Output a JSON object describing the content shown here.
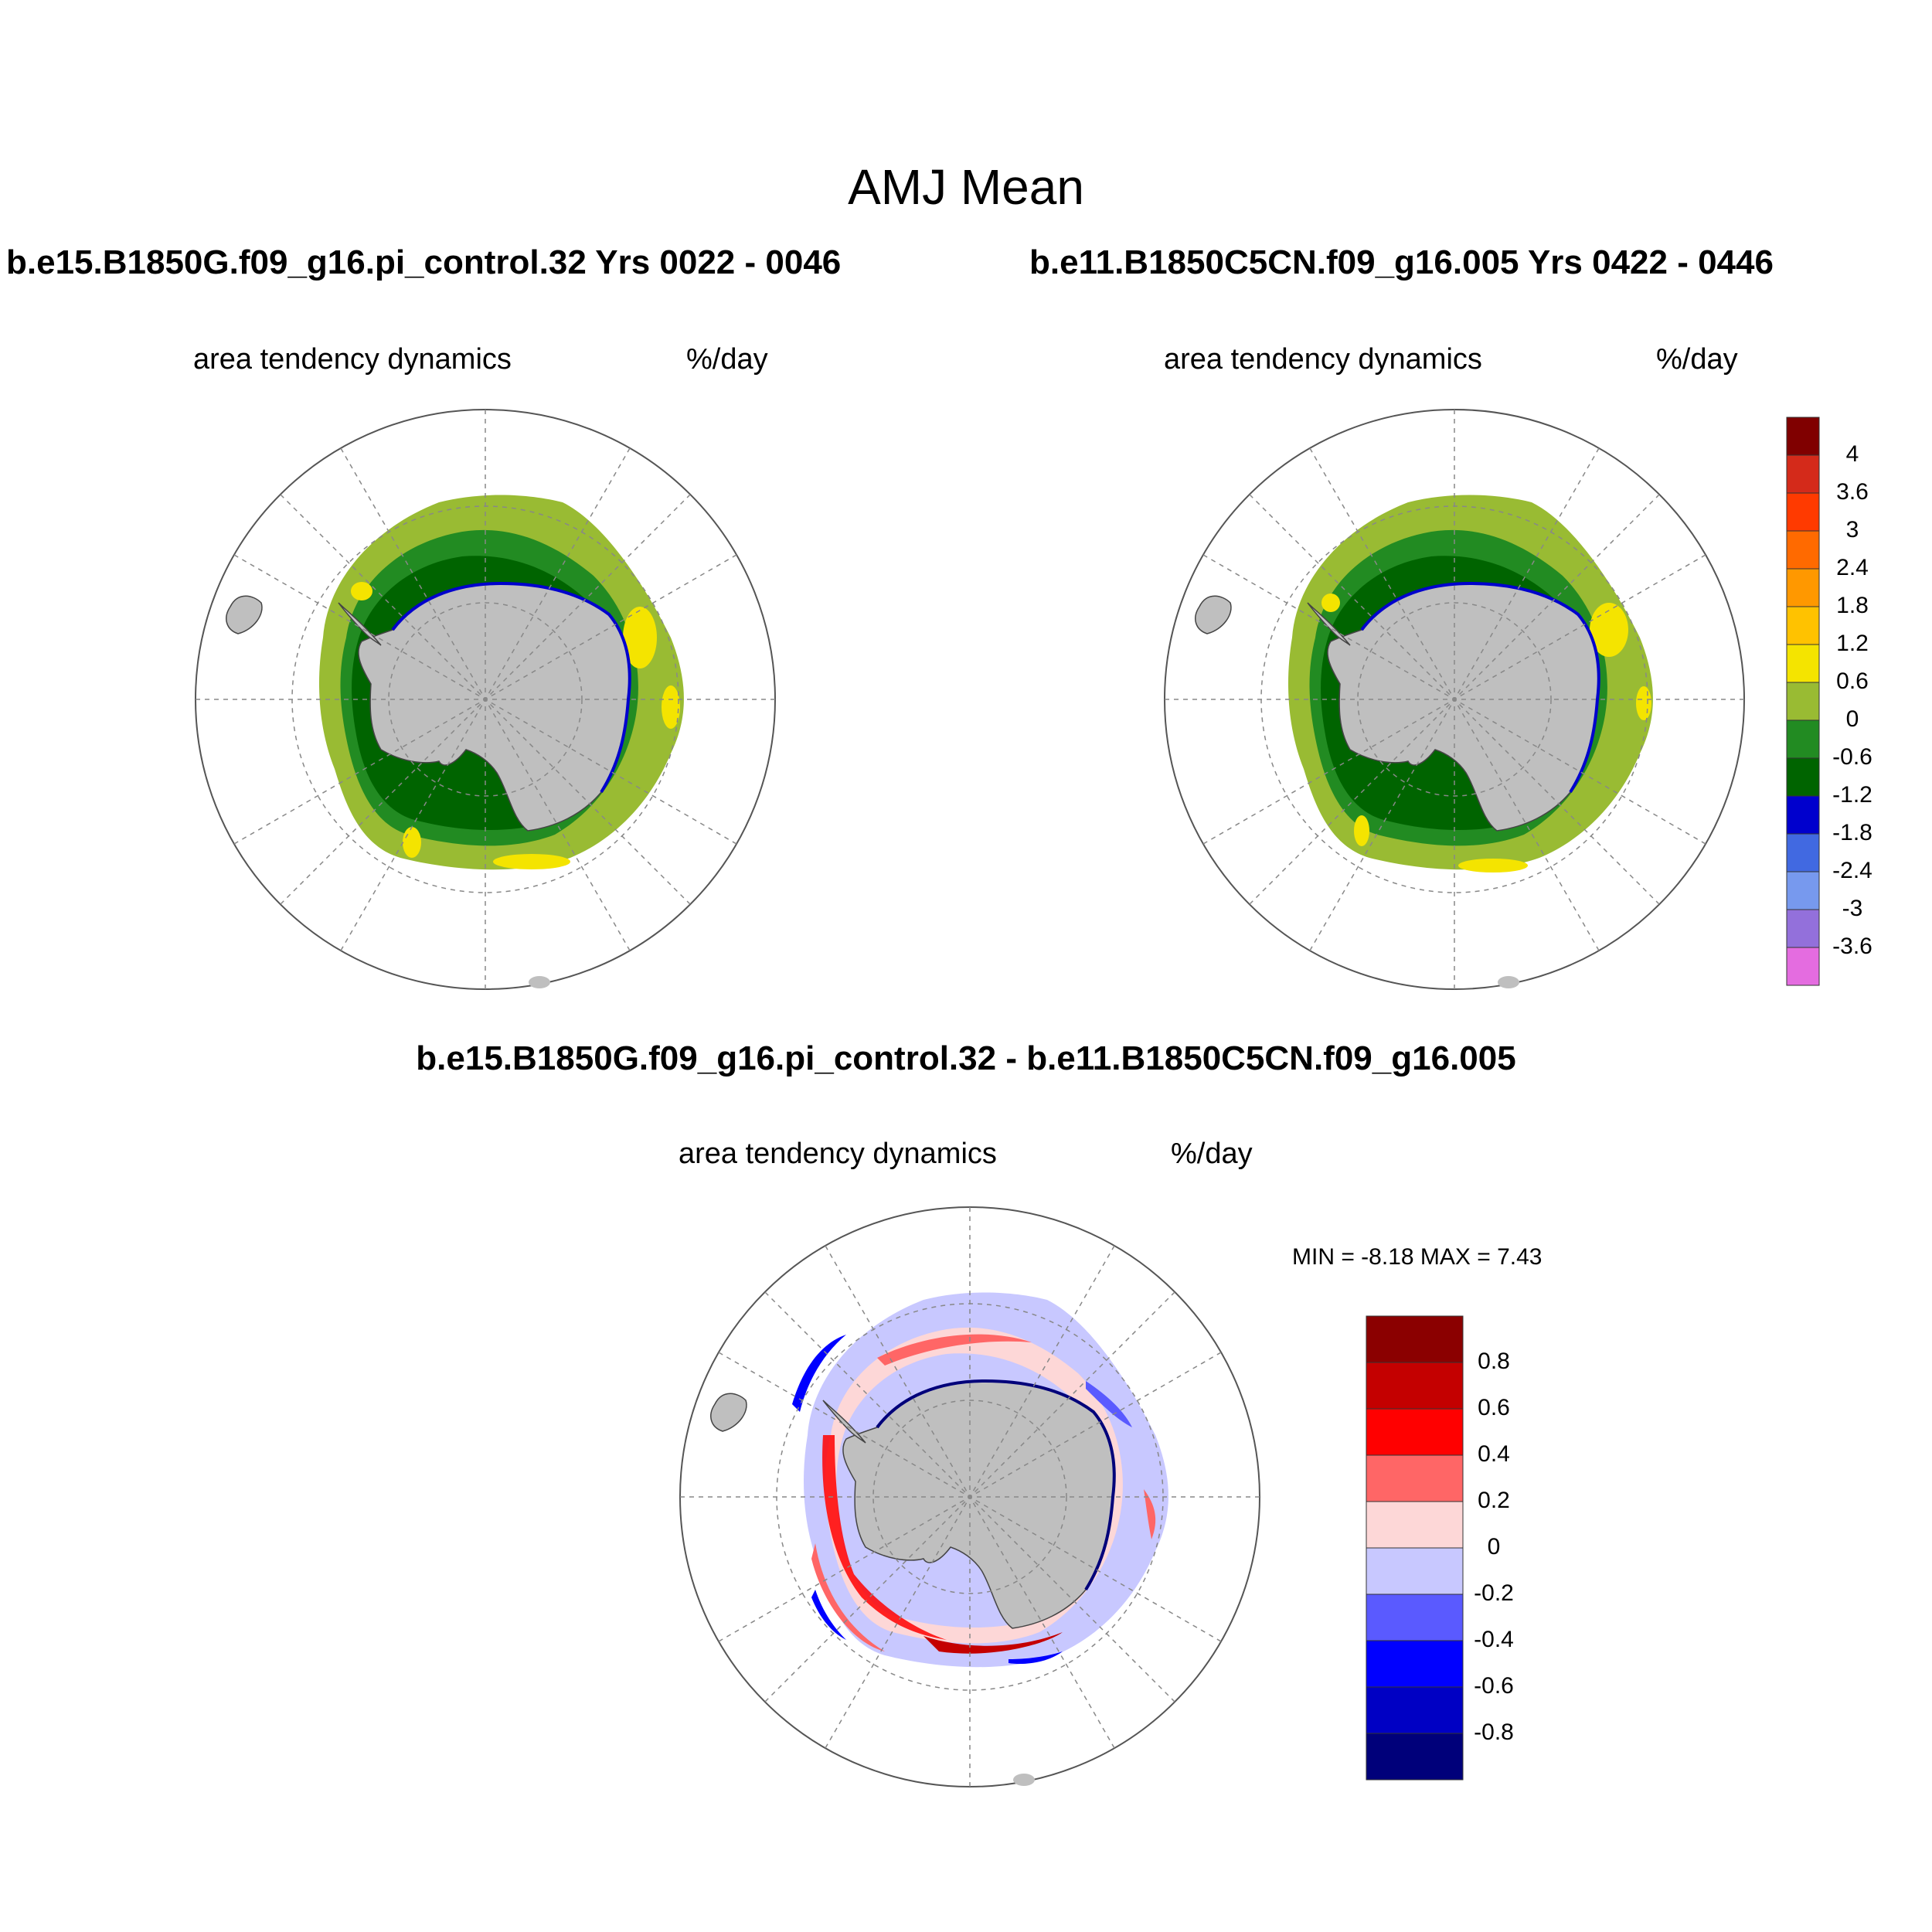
{
  "figure": {
    "main_title": "AMJ Mean",
    "panels": [
      {
        "id": "left",
        "run_title": "b.e15.B1850G.f09_g16.pi_control.32  Yrs 0022 - 0046",
        "variable_label": "area tendency dynamics",
        "units_label": "%/day"
      },
      {
        "id": "right",
        "run_title": "b.e11.B1850C5CN.f09_g16.005  Yrs 0422 - 0446",
        "variable_label": "area tendency dynamics",
        "units_label": "%/day"
      },
      {
        "id": "difference",
        "run_title": "b.e15.B1850G.f09_g16.pi_control.32 - b.e11.B1850C5CN.f09_g16.005",
        "variable_label": "area tendency dynamics",
        "units_label": "%/day",
        "min_max_label": "MIN =  -8.18 MAX =   7.43"
      }
    ]
  },
  "colorbars": {
    "main": {
      "colors": [
        "#800000",
        "#d42a1a",
        "#ff3a00",
        "#ff6a00",
        "#ff9800",
        "#ffc200",
        "#f4e400",
        "#99bb33",
        "#228b22",
        "#006400",
        "#0000cd",
        "#4169e1",
        "#7799ee",
        "#9370db",
        "#e46ce0"
      ],
      "labels": [
        "4",
        "3.6",
        "3",
        "2.4",
        "1.8",
        "1.2",
        "0.6",
        "0",
        "-0.6",
        "-1.2",
        "-1.8",
        "-2.4",
        "-3",
        "-3.6"
      ]
    },
    "difference": {
      "colors": [
        "#8b0000",
        "#c40000",
        "#ff0000",
        "#ff6666",
        "#fdd7d7",
        "#c8c8ff",
        "#5a5aff",
        "#0000ff",
        "#0000c4",
        "#00007a"
      ],
      "labels": [
        "0.8",
        "0.6",
        "0.4",
        "0.2",
        "0",
        "-0.2",
        "-0.4",
        "-0.6",
        "-0.8"
      ]
    }
  },
  "colors": {
    "land": "#bfbfbf",
    "graticule": "#888888",
    "ocean": "#ffffff"
  }
}
